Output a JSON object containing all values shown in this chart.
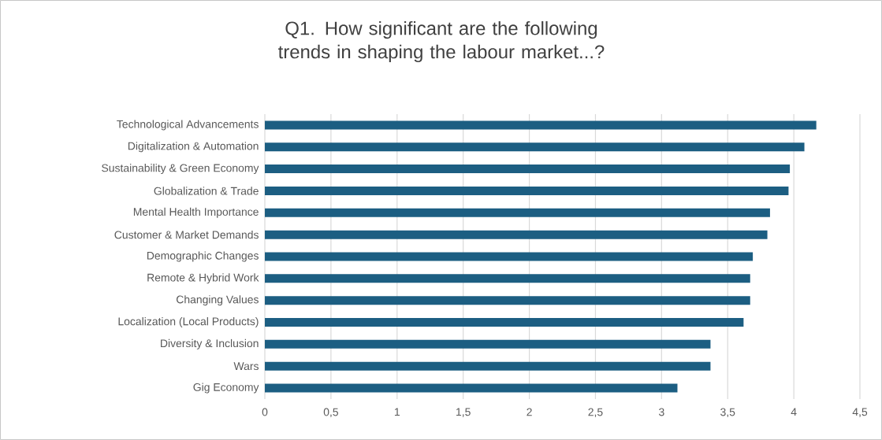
{
  "chart_data": {
    "type": "bar",
    "orientation": "horizontal",
    "title": "Q1.  How significant are the following trends in shaping the labour market...?",
    "categories": [
      "Technological Advancements",
      "Digitalization & Automation",
      "Sustainability & Green Economy",
      "Globalization & Trade",
      "Mental Health Importance",
      "Customer & Market Demands",
      "Demographic Changes",
      "Remote & Hybrid Work",
      "Changing Values",
      "Localization (Local Products)",
      "Diversity & Inclusion",
      "Wars",
      "Gig Economy"
    ],
    "values": [
      4.17,
      4.08,
      3.97,
      3.96,
      3.82,
      3.8,
      3.69,
      3.67,
      3.67,
      3.62,
      3.37,
      3.37,
      3.12
    ],
    "color": "#1c5e82",
    "xlim": [
      0,
      4.5
    ],
    "xticks": [
      0,
      {
        "value": 0.5,
        "label": "0,5"
      },
      1,
      {
        "value": 1.5,
        "label": "1,5"
      },
      2,
      {
        "value": 2.5,
        "label": "2,5"
      },
      3,
      {
        "value": 3.5,
        "label": "3,5"
      },
      4,
      {
        "value": 4.5,
        "label": "4,5"
      }
    ],
    "grid": "x"
  }
}
